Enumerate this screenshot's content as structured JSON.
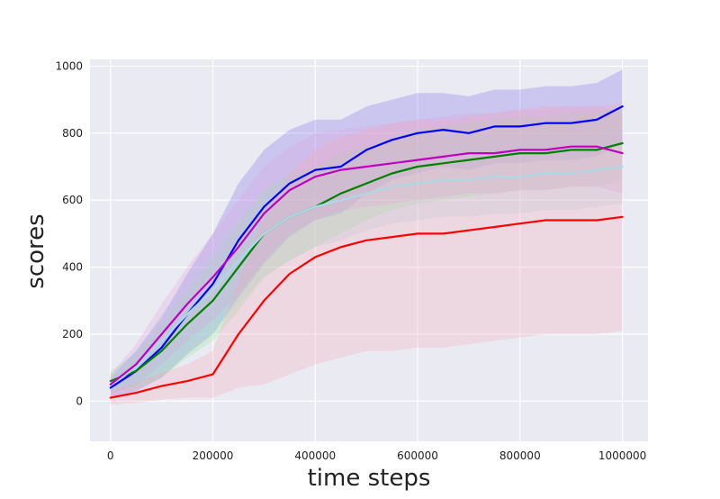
{
  "chart_data": {
    "type": "line",
    "title": "",
    "xlabel": "time steps",
    "ylabel": "scores",
    "xlim": [
      -40000,
      1050000
    ],
    "ylim": [
      -120,
      1020
    ],
    "xticks": [
      0,
      200000,
      400000,
      600000,
      800000,
      1000000
    ],
    "xtick_labels": [
      "0",
      "200000",
      "400000",
      "600000",
      "800000",
      "1000000"
    ],
    "yticks": [
      0,
      200,
      400,
      600,
      800,
      1000
    ],
    "ytick_labels": [
      "0",
      "200",
      "400",
      "600",
      "800",
      "1000"
    ],
    "grid": true,
    "legend": "none",
    "style": "seaborn-darkgrid",
    "colors": {
      "background": "#EAEAF2",
      "grid": "#FFFFFF"
    },
    "series": [
      {
        "color": "#0000FF",
        "band_color": "#7B68EE",
        "x": [
          0,
          50000,
          100000,
          150000,
          200000,
          250000,
          300000,
          350000,
          400000,
          450000,
          500000,
          550000,
          600000,
          650000,
          700000,
          750000,
          800000,
          850000,
          900000,
          950000,
          1000000
        ],
        "y": [
          40,
          90,
          160,
          260,
          350,
          480,
          580,
          650,
          690,
          700,
          750,
          780,
          800,
          810,
          800,
          820,
          820,
          830,
          830,
          840,
          880
        ],
        "band_halfwidth": [
          30,
          60,
          90,
          120,
          150,
          170,
          170,
          160,
          150,
          140,
          130,
          120,
          120,
          110,
          110,
          110,
          110,
          110,
          110,
          110,
          110
        ]
      },
      {
        "color": "#008000",
        "band_color": "#90EE90",
        "x": [
          0,
          50000,
          100000,
          150000,
          200000,
          250000,
          300000,
          350000,
          400000,
          450000,
          500000,
          550000,
          600000,
          650000,
          700000,
          750000,
          800000,
          850000,
          900000,
          950000,
          1000000
        ],
        "y": [
          60,
          90,
          150,
          230,
          300,
          400,
          500,
          550,
          580,
          620,
          650,
          680,
          700,
          710,
          720,
          730,
          740,
          740,
          750,
          750,
          770
        ],
        "band_halfwidth": [
          30,
          50,
          80,
          100,
          120,
          130,
          130,
          130,
          120,
          120,
          110,
          110,
          110,
          110,
          110,
          110,
          110,
          110,
          110,
          110,
          110
        ]
      },
      {
        "color": "#ADD8E6",
        "band_color": "#ADD8E6",
        "x": [
          0,
          50000,
          100000,
          150000,
          200000,
          250000,
          300000,
          350000,
          400000,
          450000,
          500000,
          550000,
          600000,
          650000,
          700000,
          750000,
          800000,
          850000,
          900000,
          950000,
          1000000
        ],
        "y": [
          50,
          100,
          180,
          260,
          330,
          420,
          500,
          550,
          580,
          600,
          620,
          640,
          650,
          660,
          660,
          670,
          670,
          680,
          680,
          690,
          700
        ],
        "band_halfwidth": [
          30,
          50,
          80,
          100,
          120,
          130,
          130,
          130,
          120,
          120,
          110,
          110,
          110,
          110,
          110,
          110,
          110,
          110,
          110,
          110,
          110
        ]
      },
      {
        "color": "#C000C0",
        "band_color": "#DDA0DD",
        "x": [
          0,
          50000,
          100000,
          150000,
          200000,
          250000,
          300000,
          350000,
          400000,
          450000,
          500000,
          550000,
          600000,
          650000,
          700000,
          750000,
          800000,
          850000,
          900000,
          950000,
          1000000
        ],
        "y": [
          50,
          110,
          200,
          290,
          370,
          460,
          560,
          630,
          670,
          690,
          700,
          710,
          720,
          730,
          740,
          740,
          750,
          750,
          760,
          760,
          740
        ],
        "band_halfwidth": [
          30,
          60,
          90,
          110,
          130,
          140,
          140,
          130,
          130,
          120,
          120,
          120,
          120,
          120,
          120,
          120,
          120,
          120,
          120,
          120,
          120
        ]
      },
      {
        "color": "#FF0000",
        "band_color": "#F4A6B8",
        "x": [
          0,
          50000,
          100000,
          150000,
          200000,
          250000,
          300000,
          350000,
          400000,
          450000,
          500000,
          550000,
          600000,
          650000,
          700000,
          750000,
          800000,
          850000,
          900000,
          950000,
          1000000
        ],
        "y": [
          10,
          25,
          45,
          60,
          80,
          200,
          300,
          380,
          430,
          460,
          480,
          490,
          500,
          500,
          510,
          520,
          530,
          540,
          540,
          540,
          550
        ],
        "band_halfwidth": [
          20,
          30,
          40,
          50,
          70,
          160,
          250,
          300,
          320,
          330,
          330,
          340,
          340,
          340,
          340,
          340,
          340,
          340,
          340,
          340,
          340
        ]
      }
    ]
  }
}
